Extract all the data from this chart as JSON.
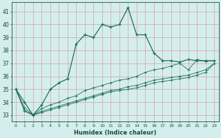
{
  "xlabel": "Humidex (Indice chaleur)",
  "bg_color": "#d4eeed",
  "line_color": "#1a6b5a",
  "grid_color": "#d4a0a0",
  "xlim": [
    -0.5,
    23.5
  ],
  "ylim": [
    32.5,
    41.7
  ],
  "xticks": [
    0,
    1,
    2,
    3,
    4,
    5,
    6,
    7,
    8,
    9,
    10,
    11,
    12,
    13,
    14,
    15,
    16,
    17,
    18,
    19,
    20,
    21,
    22,
    23
  ],
  "yticks": [
    33,
    34,
    35,
    36,
    37,
    38,
    39,
    40,
    41
  ],
  "series0": [
    35.0,
    34.0,
    33.0,
    33.8,
    35.0,
    35.5,
    35.8,
    38.5,
    39.2,
    39.0,
    40.0,
    39.8,
    40.0,
    41.3,
    39.2,
    39.2,
    37.8,
    37.2,
    37.2,
    37.1,
    37.3,
    37.2,
    37.2,
    37.2
  ],
  "series1": [
    35.0,
    33.6,
    33.0,
    33.5,
    33.8,
    34.0,
    34.3,
    34.5,
    34.9,
    35.1,
    35.3,
    35.5,
    35.7,
    35.8,
    36.0,
    36.3,
    36.5,
    36.6,
    36.8,
    37.0,
    36.5,
    37.3,
    37.15,
    37.2
  ],
  "series2": [
    35.0,
    33.4,
    33.0,
    33.3,
    33.5,
    33.7,
    33.9,
    34.1,
    34.3,
    34.5,
    34.7,
    34.9,
    35.0,
    35.2,
    35.3,
    35.5,
    35.7,
    35.8,
    35.9,
    36.0,
    36.1,
    36.3,
    36.5,
    37.0
  ],
  "series3": [
    35.0,
    33.3,
    33.0,
    33.2,
    33.4,
    33.6,
    33.8,
    34.0,
    34.2,
    34.4,
    34.6,
    34.8,
    34.9,
    35.0,
    35.1,
    35.3,
    35.5,
    35.6,
    35.7,
    35.8,
    35.9,
    36.1,
    36.3,
    37.0
  ]
}
